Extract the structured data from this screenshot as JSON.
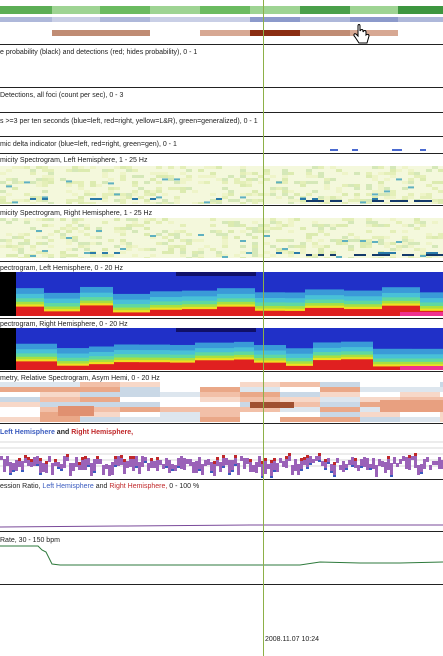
{
  "panels": [
    {
      "id": "p1",
      "label": "e probability (black) and detections (red; hides probability),  0 - 1"
    },
    {
      "id": "p2",
      "label": "Detections, all foci (count per sec), 0 - 3"
    },
    {
      "id": "p3",
      "label": "s >=3 per ten seconds (blue=left, red=right, yellow=L&R), green=generalized),  0 - 1"
    },
    {
      "id": "p4",
      "label": "mic delta indicator (blue=left, red=right, green=gen),  0 - 1"
    },
    {
      "id": "p5",
      "label": "micity Spectrogram, Left Hemisphere, 1 - 25 Hz"
    },
    {
      "id": "p6",
      "label": "micity Spectrogram, Right Hemisphere, 1 - 25 Hz"
    },
    {
      "id": "p7",
      "label": "pectrogram, Left Hemisphere, 0 - 20 Hz"
    },
    {
      "id": "p8",
      "label": "pectrogram, Right Hemisphere, 0 - 20 Hz"
    },
    {
      "id": "p9",
      "label": "metry, Relative Spectrogram, Asym Hemi, 0 - 20 Hz"
    },
    {
      "id": "p10",
      "label_left": "Left Hemisphere",
      "label_and": " and ",
      "label_right": "Right Hemisphere,"
    },
    {
      "id": "p11",
      "label_prefix": "ession Ratio, ",
      "label_left": "Left Hemisphere",
      "label_and": " and ",
      "label_right": "Right Hemisphere,",
      "label_suffix": "  0 - 100 %"
    },
    {
      "id": "p12",
      "label": "Rate, 30 - 150 bpm"
    }
  ],
  "timestamp": "2008.11.07 10:24",
  "colors": {
    "cursor_line": "#8db048",
    "left_hemisphere": "#3a5bbf",
    "right_hemisphere": "#c0282a",
    "heart_rate_trace": "#2e7a3c"
  },
  "icons": {
    "cursor": "hand-pointer-icon"
  }
}
